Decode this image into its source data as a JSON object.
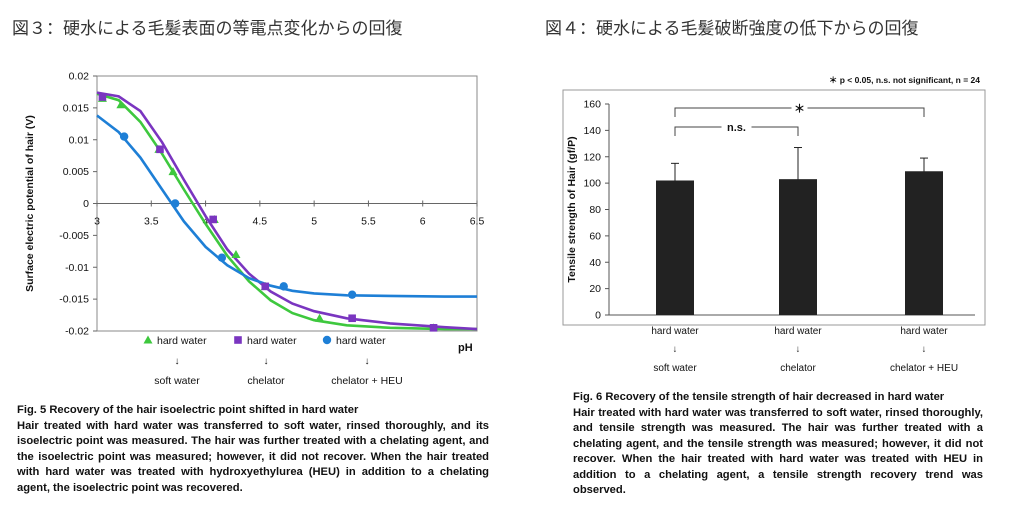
{
  "left_heading": "図３：硬水による毛髪表面の等電点変化からの回復",
  "right_heading": "図４：硬水による毛髪破断強度の低下からの回復",
  "chart_data": [
    {
      "type": "scatter",
      "ylabel": "Surface electric potential of hair (V)",
      "xlabel": "pH",
      "xlim": [
        3,
        6.5
      ],
      "ylim": [
        -0.02,
        0.02
      ],
      "x_ticks": [
        "3",
        "3.5",
        "4",
        "4.5",
        "5",
        "5.5",
        "6",
        "6.5"
      ],
      "y_ticks": [
        "0.02",
        "0.015",
        "0.01",
        "0.005",
        "0",
        "-0.005",
        "-0.01",
        "-0.015",
        "-0.02"
      ],
      "grid": false,
      "legend_position": "bottom",
      "series": [
        {
          "name_lines": [
            "hard water",
            "↓",
            "soft water"
          ],
          "color": "#3ec83e",
          "marker": "triangle",
          "points": [
            [
              3.05,
              0.0165
            ],
            [
              3.22,
              0.0155
            ],
            [
              3.57,
              0.0085
            ],
            [
              3.7,
              0.005
            ],
            [
              4.08,
              -0.0025
            ],
            [
              4.28,
              -0.008
            ],
            [
              4.55,
              -0.013
            ],
            [
              5.05,
              -0.018
            ],
            [
              6.1,
              -0.0195
            ]
          ],
          "curve": [
            [
              3.0,
              0.0172
            ],
            [
              3.2,
              0.0162
            ],
            [
              3.4,
              0.0128
            ],
            [
              3.6,
              0.0078
            ],
            [
              3.8,
              0.0022
            ],
            [
              4.0,
              -0.0032
            ],
            [
              4.2,
              -0.0082
            ],
            [
              4.4,
              -0.0122
            ],
            [
              4.6,
              -0.0152
            ],
            [
              4.8,
              -0.0172
            ],
            [
              5.0,
              -0.0183
            ],
            [
              5.3,
              -0.0191
            ],
            [
              5.7,
              -0.0195
            ],
            [
              6.2,
              -0.0197
            ],
            [
              6.5,
              -0.0197
            ]
          ]
        },
        {
          "name_lines": [
            "hard water",
            "↓",
            "chelator"
          ],
          "color": "#7a35c0",
          "marker": "square",
          "points": [
            [
              3.05,
              0.0167
            ],
            [
              3.58,
              0.0085
            ],
            [
              4.07,
              -0.0025
            ],
            [
              4.55,
              -0.013
            ],
            [
              5.35,
              -0.018
            ],
            [
              6.1,
              -0.0195
            ]
          ],
          "curve": [
            [
              3.0,
              0.0174
            ],
            [
              3.2,
              0.0168
            ],
            [
              3.4,
              0.0145
            ],
            [
              3.6,
              0.0096
            ],
            [
              3.8,
              0.0037
            ],
            [
              4.0,
              -0.002
            ],
            [
              4.2,
              -0.0072
            ],
            [
              4.4,
              -0.011
            ],
            [
              4.6,
              -0.0138
            ],
            [
              4.8,
              -0.0157
            ],
            [
              5.0,
              -0.0169
            ],
            [
              5.3,
              -0.018
            ],
            [
              5.7,
              -0.0188
            ],
            [
              6.2,
              -0.0194
            ],
            [
              6.5,
              -0.0197
            ]
          ]
        },
        {
          "name_lines": [
            "hard water",
            "↓",
            "chelator + HEU"
          ],
          "color": "#1e7fd6",
          "marker": "circle",
          "points": [
            [
              3.25,
              0.0105
            ],
            [
              3.72,
              0.0
            ],
            [
              4.15,
              -0.0085
            ],
            [
              4.72,
              -0.013
            ],
            [
              5.35,
              -0.0143
            ]
          ],
          "curve": [
            [
              3.0,
              0.0138
            ],
            [
              3.2,
              0.0112
            ],
            [
              3.4,
              0.0072
            ],
            [
              3.6,
              0.0022
            ],
            [
              3.8,
              -0.0028
            ],
            [
              4.0,
              -0.0068
            ],
            [
              4.2,
              -0.0097
            ],
            [
              4.4,
              -0.0117
            ],
            [
              4.6,
              -0.0129
            ],
            [
              4.8,
              -0.0137
            ],
            [
              5.0,
              -0.0141
            ],
            [
              5.3,
              -0.0144
            ],
            [
              5.7,
              -0.0145
            ],
            [
              6.2,
              -0.0146
            ],
            [
              6.5,
              -0.0146
            ]
          ]
        }
      ]
    },
    {
      "type": "bar",
      "ylabel": "Tensile strength of Hair (gf/P)",
      "ylim": [
        0,
        160
      ],
      "y_ticks": [
        "0",
        "20",
        "40",
        "60",
        "80",
        "100",
        "120",
        "140",
        "160"
      ],
      "note": "＊ p < 0.05, n.s. not significant, n = 24",
      "bar_color": "#222222",
      "categories": [
        [
          "hard water",
          "↓",
          "soft water"
        ],
        [
          "hard water",
          "↓",
          "chelator"
        ],
        [
          "hard water",
          "↓",
          "chelator + HEU"
        ]
      ],
      "values": [
        102,
        103,
        109
      ],
      "errors": [
        13,
        24,
        10
      ],
      "significance": [
        {
          "from": 0,
          "to": 1,
          "label": "n.s."
        },
        {
          "from": 0,
          "to": 2,
          "label": "＊"
        }
      ]
    }
  ],
  "left_caption_title": "Fig. 5 Recovery of the hair isoelectric point shifted in hard water",
  "left_caption_body": "Hair treated with hard water was transferred to soft water, rinsed thoroughly, and its isoelectric point was measured. The hair was further treated with a chelating agent, and the isoelectric point was measured; however, it did not recover. When the hair treated with hard water was treated with hydroxyethylurea (HEU) in addition to a chelating agent, the isoelectric point was recovered.",
  "right_caption_title": "Fig. 6 Recovery of the tensile strength of hair decreased in hard water",
  "right_caption_body": "Hair treated with hard water was transferred to soft water, rinsed thoroughly, and tensile strength was measured. The hair was further treated with a chelating agent, and the tensile strength was measured; however, it did not recover. When the hair treated with hard water was treated with HEU in addition to a chelating agent, a tensile strength recovery trend was observed."
}
